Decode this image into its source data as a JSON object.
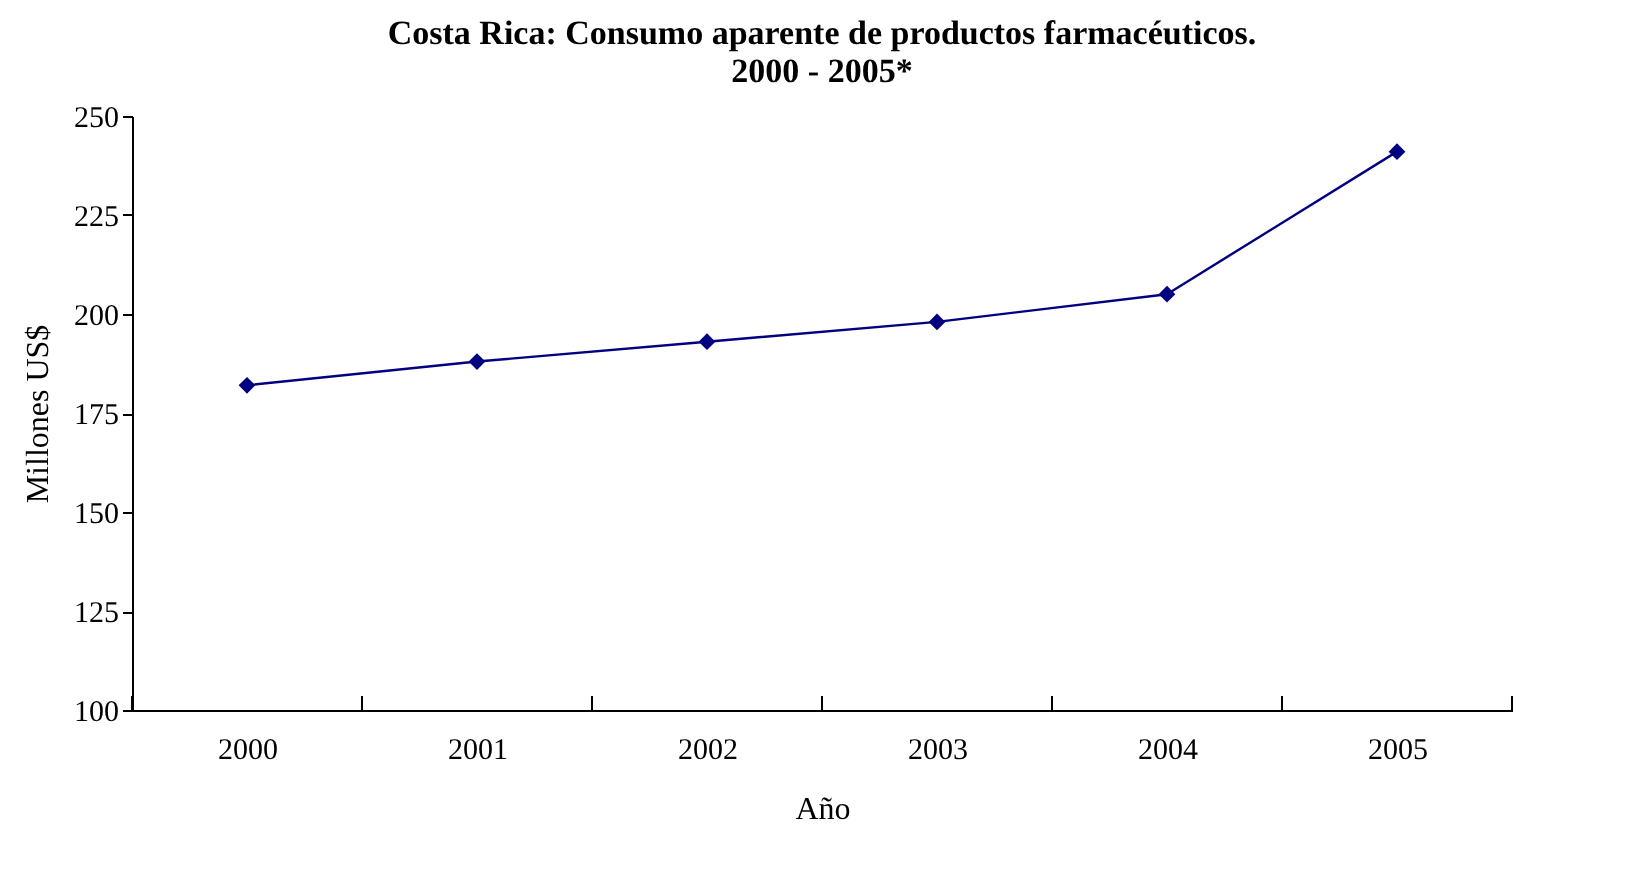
{
  "chart_data": {
    "type": "line",
    "title": "Costa Rica: Consumo aparente de productos farmacéuticos.\n2000 - 2005*",
    "xlabel": "Año",
    "ylabel": "Millones US$",
    "categories": [
      "2000",
      "2001",
      "2002",
      "2003",
      "2004",
      "2005"
    ],
    "series": [
      {
        "color": "#000080",
        "values": [
          182,
          188,
          193,
          198,
          205,
          241
        ]
      }
    ],
    "ylim": [
      100,
      250
    ],
    "yticks": [
      100,
      125,
      150,
      175,
      200,
      225,
      250
    ],
    "marker": "diamond",
    "line_style": "solid",
    "grid": false,
    "legend": false
  }
}
